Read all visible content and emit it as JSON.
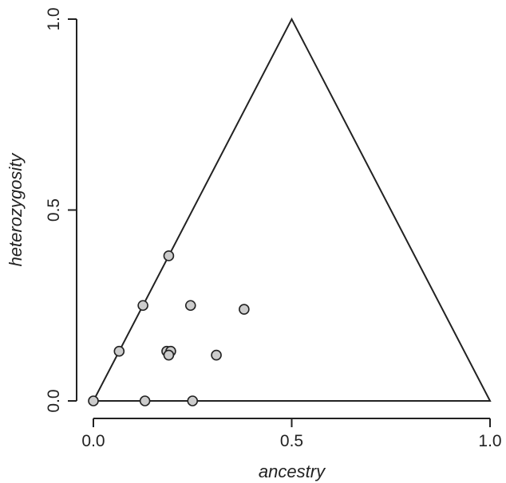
{
  "chart_data": {
    "type": "scatter",
    "xlabel": "ancestry",
    "ylabel": "heterozygosity",
    "xlim": [
      0,
      1
    ],
    "ylim": [
      0,
      1
    ],
    "x_ticks": [
      {
        "value": 0,
        "label": "0.0"
      },
      {
        "value": 0.5,
        "label": "0.5"
      },
      {
        "value": 1,
        "label": "1.0"
      }
    ],
    "y_ticks": [
      {
        "value": 0,
        "label": "0.0"
      },
      {
        "value": 0.5,
        "label": "0.5"
      },
      {
        "value": 1,
        "label": "1.0"
      }
    ],
    "grid": false,
    "boundary": {
      "type": "triangle",
      "vertices": [
        {
          "x": 0,
          "y": 0
        },
        {
          "x": 0.5,
          "y": 1
        },
        {
          "x": 1,
          "y": 0
        }
      ]
    },
    "points": [
      {
        "x": 0.0,
        "y": 0.0
      },
      {
        "x": 0.13,
        "y": 0.0
      },
      {
        "x": 0.25,
        "y": 0.0
      },
      {
        "x": 0.065,
        "y": 0.13
      },
      {
        "x": 0.125,
        "y": 0.25
      },
      {
        "x": 0.19,
        "y": 0.38
      },
      {
        "x": 0.245,
        "y": 0.25
      },
      {
        "x": 0.38,
        "y": 0.24
      },
      {
        "x": 0.31,
        "y": 0.12
      },
      {
        "x": 0.185,
        "y": 0.13
      },
      {
        "x": 0.195,
        "y": 0.13
      },
      {
        "x": 0.19,
        "y": 0.12
      }
    ],
    "colors": {
      "point_fill": "#cccccc",
      "stroke": "#222222"
    }
  }
}
